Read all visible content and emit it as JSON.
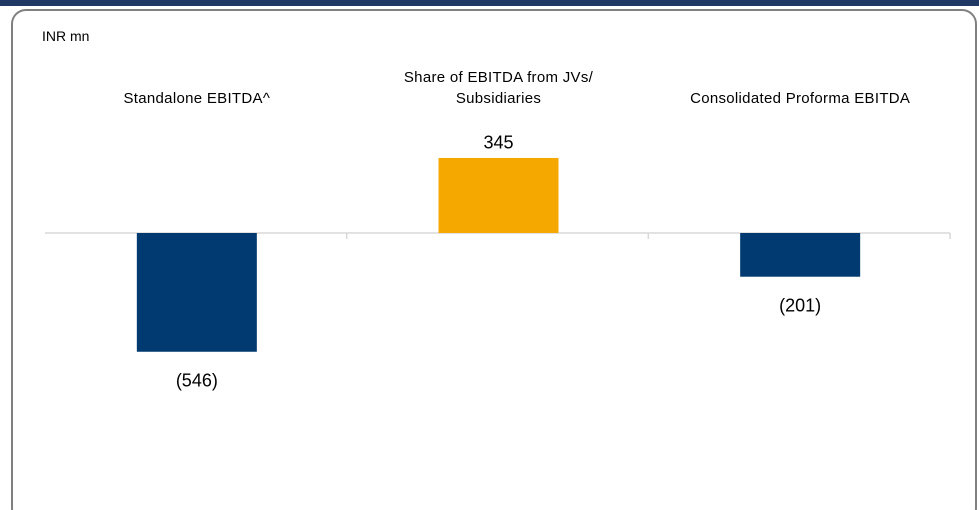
{
  "chart_data": {
    "type": "bar",
    "unit_label": "INR mn",
    "categories": [
      "Standalone EBITDA^",
      "Share of EBITDA from JVs/ Subsidiaries",
      "Consolidated Proforma EBITDA"
    ],
    "values": [
      -546,
      345,
      -201
    ],
    "value_labels": [
      "(546)",
      "345",
      "(201)"
    ],
    "colors": [
      "#003a70",
      "#f5a800",
      "#003a70"
    ],
    "ylim": [
      -800,
      800
    ]
  }
}
